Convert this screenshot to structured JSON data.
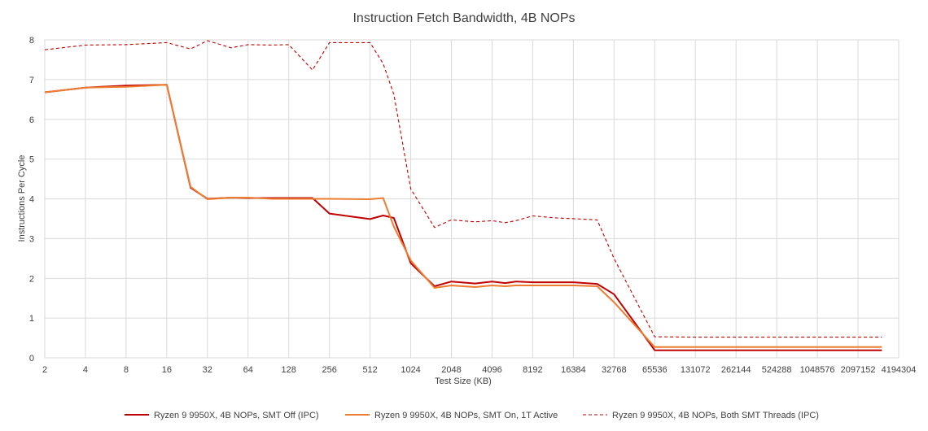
{
  "chart_data": {
    "type": "line",
    "title": "Instruction Fetch Bandwidth, 4B NOPs",
    "xlabel": "Test Size (KB)",
    "ylabel": "Instructions Per Cycle",
    "ylim": [
      0,
      8
    ],
    "yticks": [
      "0",
      "1",
      "2",
      "3",
      "4",
      "5",
      "6",
      "7",
      "8"
    ],
    "xscale": "log2",
    "xticks": [
      "2",
      "4",
      "8",
      "16",
      "32",
      "64",
      "128",
      "256",
      "512",
      "1024",
      "2048",
      "4096",
      "8192",
      "16384",
      "32768",
      "65536",
      "131072",
      "262144",
      "524288",
      "1048576",
      "2097152",
      "4194304"
    ],
    "grid": "vertical and horizontal",
    "legend_position": "bottom",
    "series": [
      {
        "name": "Ryzen 9 9950X, 4B NOPs, SMT Off (IPC)",
        "color": "#C00000",
        "dash": "solid",
        "x": [
          2,
          4,
          8,
          16,
          24,
          32,
          48,
          64,
          96,
          128,
          192,
          256,
          512,
          640,
          768,
          1024,
          1536,
          2048,
          3072,
          4096,
          5120,
          6144,
          8192,
          12288,
          16384,
          24576,
          32768,
          65536,
          131072,
          262144,
          524288,
          1048576,
          2097152,
          3145728
        ],
        "y": [
          6.68,
          6.8,
          6.85,
          6.87,
          4.28,
          4.0,
          4.03,
          4.02,
          4.02,
          4.02,
          4.02,
          3.63,
          3.49,
          3.58,
          3.52,
          2.38,
          1.8,
          1.92,
          1.87,
          1.92,
          1.88,
          1.92,
          1.9,
          1.9,
          1.9,
          1.86,
          1.6,
          0.19,
          0.19,
          0.19,
          0.19,
          0.19,
          0.19,
          0.19
        ]
      },
      {
        "name": "Ryzen 9 9950X, 4B NOPs, SMT On, 1T Active",
        "color": "#ED7D31",
        "dash": "solid",
        "x": [
          2,
          4,
          8,
          16,
          24,
          32,
          48,
          64,
          96,
          128,
          192,
          256,
          512,
          640,
          768,
          1024,
          1536,
          2048,
          3072,
          4096,
          5120,
          6144,
          8192,
          12288,
          16384,
          24576,
          32768,
          65536,
          131072,
          262144,
          524288,
          1048576,
          2097152,
          3145728
        ],
        "y": [
          6.68,
          6.8,
          6.82,
          6.87,
          4.3,
          3.99,
          4.03,
          4.03,
          4.0,
          4.0,
          4.0,
          4.0,
          3.99,
          4.02,
          3.3,
          2.45,
          1.76,
          1.82,
          1.78,
          1.82,
          1.8,
          1.82,
          1.82,
          1.82,
          1.82,
          1.8,
          1.4,
          0.27,
          0.27,
          0.27,
          0.27,
          0.27,
          0.27,
          0.27
        ]
      },
      {
        "name": "Ryzen 9 9950X, 4B NOPs, Both SMT Threads (IPC)",
        "color": "#C00000",
        "dash": "dashed",
        "x": [
          2,
          4,
          8,
          16,
          24,
          32,
          48,
          64,
          96,
          128,
          192,
          256,
          384,
          512,
          640,
          768,
          1024,
          1536,
          2048,
          3072,
          4096,
          5120,
          6144,
          8192,
          12288,
          16384,
          24576,
          32768,
          65536,
          131072,
          262144,
          524288,
          1048576,
          2097152,
          3145728
        ],
        "y": [
          7.75,
          7.87,
          7.88,
          7.93,
          7.77,
          7.98,
          7.8,
          7.88,
          7.87,
          7.88,
          7.24,
          7.93,
          7.93,
          7.93,
          7.4,
          6.63,
          4.25,
          3.28,
          3.47,
          3.42,
          3.45,
          3.4,
          3.45,
          3.57,
          3.52,
          3.5,
          3.47,
          2.5,
          0.53,
          0.52,
          0.52,
          0.52,
          0.52,
          0.52,
          0.52
        ]
      }
    ]
  }
}
